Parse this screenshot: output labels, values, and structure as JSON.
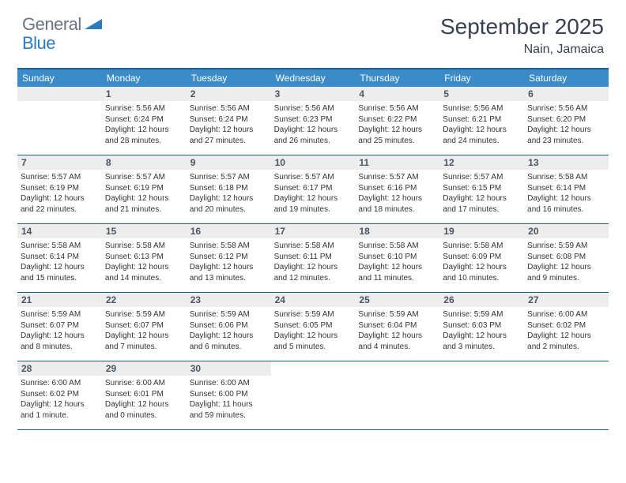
{
  "logo": {
    "general": "General",
    "blue": "Blue"
  },
  "title": "September 2025",
  "location": "Nain, Jamaica",
  "colors": {
    "header_bg": "#3b8bc9",
    "border": "#1f5f8b",
    "daynum_bg": "#ededed",
    "text": "#333333",
    "logo_gray": "#6b7280",
    "logo_blue": "#2b7bbf"
  },
  "dow": [
    "Sunday",
    "Monday",
    "Tuesday",
    "Wednesday",
    "Thursday",
    "Friday",
    "Saturday"
  ],
  "weeks": [
    [
      null,
      {
        "n": "1",
        "sr": "Sunrise: 5:56 AM",
        "ss": "Sunset: 6:24 PM",
        "d1": "Daylight: 12 hours",
        "d2": "and 28 minutes."
      },
      {
        "n": "2",
        "sr": "Sunrise: 5:56 AM",
        "ss": "Sunset: 6:24 PM",
        "d1": "Daylight: 12 hours",
        "d2": "and 27 minutes."
      },
      {
        "n": "3",
        "sr": "Sunrise: 5:56 AM",
        "ss": "Sunset: 6:23 PM",
        "d1": "Daylight: 12 hours",
        "d2": "and 26 minutes."
      },
      {
        "n": "4",
        "sr": "Sunrise: 5:56 AM",
        "ss": "Sunset: 6:22 PM",
        "d1": "Daylight: 12 hours",
        "d2": "and 25 minutes."
      },
      {
        "n": "5",
        "sr": "Sunrise: 5:56 AM",
        "ss": "Sunset: 6:21 PM",
        "d1": "Daylight: 12 hours",
        "d2": "and 24 minutes."
      },
      {
        "n": "6",
        "sr": "Sunrise: 5:56 AM",
        "ss": "Sunset: 6:20 PM",
        "d1": "Daylight: 12 hours",
        "d2": "and 23 minutes."
      }
    ],
    [
      {
        "n": "7",
        "sr": "Sunrise: 5:57 AM",
        "ss": "Sunset: 6:19 PM",
        "d1": "Daylight: 12 hours",
        "d2": "and 22 minutes."
      },
      {
        "n": "8",
        "sr": "Sunrise: 5:57 AM",
        "ss": "Sunset: 6:19 PM",
        "d1": "Daylight: 12 hours",
        "d2": "and 21 minutes."
      },
      {
        "n": "9",
        "sr": "Sunrise: 5:57 AM",
        "ss": "Sunset: 6:18 PM",
        "d1": "Daylight: 12 hours",
        "d2": "and 20 minutes."
      },
      {
        "n": "10",
        "sr": "Sunrise: 5:57 AM",
        "ss": "Sunset: 6:17 PM",
        "d1": "Daylight: 12 hours",
        "d2": "and 19 minutes."
      },
      {
        "n": "11",
        "sr": "Sunrise: 5:57 AM",
        "ss": "Sunset: 6:16 PM",
        "d1": "Daylight: 12 hours",
        "d2": "and 18 minutes."
      },
      {
        "n": "12",
        "sr": "Sunrise: 5:57 AM",
        "ss": "Sunset: 6:15 PM",
        "d1": "Daylight: 12 hours",
        "d2": "and 17 minutes."
      },
      {
        "n": "13",
        "sr": "Sunrise: 5:58 AM",
        "ss": "Sunset: 6:14 PM",
        "d1": "Daylight: 12 hours",
        "d2": "and 16 minutes."
      }
    ],
    [
      {
        "n": "14",
        "sr": "Sunrise: 5:58 AM",
        "ss": "Sunset: 6:14 PM",
        "d1": "Daylight: 12 hours",
        "d2": "and 15 minutes."
      },
      {
        "n": "15",
        "sr": "Sunrise: 5:58 AM",
        "ss": "Sunset: 6:13 PM",
        "d1": "Daylight: 12 hours",
        "d2": "and 14 minutes."
      },
      {
        "n": "16",
        "sr": "Sunrise: 5:58 AM",
        "ss": "Sunset: 6:12 PM",
        "d1": "Daylight: 12 hours",
        "d2": "and 13 minutes."
      },
      {
        "n": "17",
        "sr": "Sunrise: 5:58 AM",
        "ss": "Sunset: 6:11 PM",
        "d1": "Daylight: 12 hours",
        "d2": "and 12 minutes."
      },
      {
        "n": "18",
        "sr": "Sunrise: 5:58 AM",
        "ss": "Sunset: 6:10 PM",
        "d1": "Daylight: 12 hours",
        "d2": "and 11 minutes."
      },
      {
        "n": "19",
        "sr": "Sunrise: 5:58 AM",
        "ss": "Sunset: 6:09 PM",
        "d1": "Daylight: 12 hours",
        "d2": "and 10 minutes."
      },
      {
        "n": "20",
        "sr": "Sunrise: 5:59 AM",
        "ss": "Sunset: 6:08 PM",
        "d1": "Daylight: 12 hours",
        "d2": "and 9 minutes."
      }
    ],
    [
      {
        "n": "21",
        "sr": "Sunrise: 5:59 AM",
        "ss": "Sunset: 6:07 PM",
        "d1": "Daylight: 12 hours",
        "d2": "and 8 minutes."
      },
      {
        "n": "22",
        "sr": "Sunrise: 5:59 AM",
        "ss": "Sunset: 6:07 PM",
        "d1": "Daylight: 12 hours",
        "d2": "and 7 minutes."
      },
      {
        "n": "23",
        "sr": "Sunrise: 5:59 AM",
        "ss": "Sunset: 6:06 PM",
        "d1": "Daylight: 12 hours",
        "d2": "and 6 minutes."
      },
      {
        "n": "24",
        "sr": "Sunrise: 5:59 AM",
        "ss": "Sunset: 6:05 PM",
        "d1": "Daylight: 12 hours",
        "d2": "and 5 minutes."
      },
      {
        "n": "25",
        "sr": "Sunrise: 5:59 AM",
        "ss": "Sunset: 6:04 PM",
        "d1": "Daylight: 12 hours",
        "d2": "and 4 minutes."
      },
      {
        "n": "26",
        "sr": "Sunrise: 5:59 AM",
        "ss": "Sunset: 6:03 PM",
        "d1": "Daylight: 12 hours",
        "d2": "and 3 minutes."
      },
      {
        "n": "27",
        "sr": "Sunrise: 6:00 AM",
        "ss": "Sunset: 6:02 PM",
        "d1": "Daylight: 12 hours",
        "d2": "and 2 minutes."
      }
    ],
    [
      {
        "n": "28",
        "sr": "Sunrise: 6:00 AM",
        "ss": "Sunset: 6:02 PM",
        "d1": "Daylight: 12 hours",
        "d2": "and 1 minute."
      },
      {
        "n": "29",
        "sr": "Sunrise: 6:00 AM",
        "ss": "Sunset: 6:01 PM",
        "d1": "Daylight: 12 hours",
        "d2": "and 0 minutes."
      },
      {
        "n": "30",
        "sr": "Sunrise: 6:00 AM",
        "ss": "Sunset: 6:00 PM",
        "d1": "Daylight: 11 hours",
        "d2": "and 59 minutes."
      },
      null,
      null,
      null,
      null
    ]
  ]
}
